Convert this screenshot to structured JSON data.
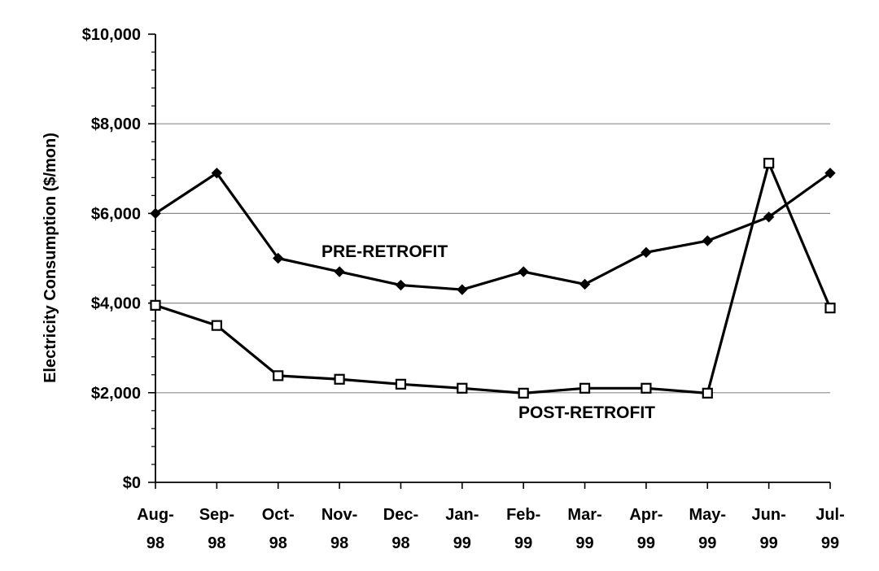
{
  "chart_data": {
    "type": "line",
    "title": "",
    "xlabel": "",
    "ylabel": "Electricity Consumption ($/mon)",
    "categories": [
      [
        "Aug-",
        "98"
      ],
      [
        "Sep-",
        "98"
      ],
      [
        "Oct-",
        "98"
      ],
      [
        "Nov-",
        "98"
      ],
      [
        "Dec-",
        "98"
      ],
      [
        "Jan-",
        "99"
      ],
      [
        "Feb-",
        "99"
      ],
      [
        "Mar-",
        "99"
      ],
      [
        "Apr-",
        "99"
      ],
      [
        "May-",
        "99"
      ],
      [
        "Jun-",
        "99"
      ],
      [
        "Jul-",
        "99"
      ]
    ],
    "y_ticks": [
      "$0",
      "$2,000",
      "$4,000",
      "$6,000",
      "$8,000",
      "$10,000"
    ],
    "y_tick_values": [
      0,
      2000,
      4000,
      6000,
      8000,
      10000
    ],
    "ylim": [
      0,
      10000
    ],
    "grid": true,
    "series": [
      {
        "name": "PRE-RETROFIT",
        "marker": "diamond",
        "color": "#000000",
        "values": [
          6000,
          6900,
          5000,
          4700,
          4400,
          4300,
          4700,
          4420,
          5130,
          5390,
          5920,
          6900
        ]
      },
      {
        "name": "POST-RETROFIT",
        "marker": "square",
        "color": "#000000",
        "values": [
          3950,
          3500,
          2380,
          2300,
          2190,
          2100,
          1990,
          2100,
          2100,
          1990,
          7120,
          3890
        ]
      }
    ]
  }
}
